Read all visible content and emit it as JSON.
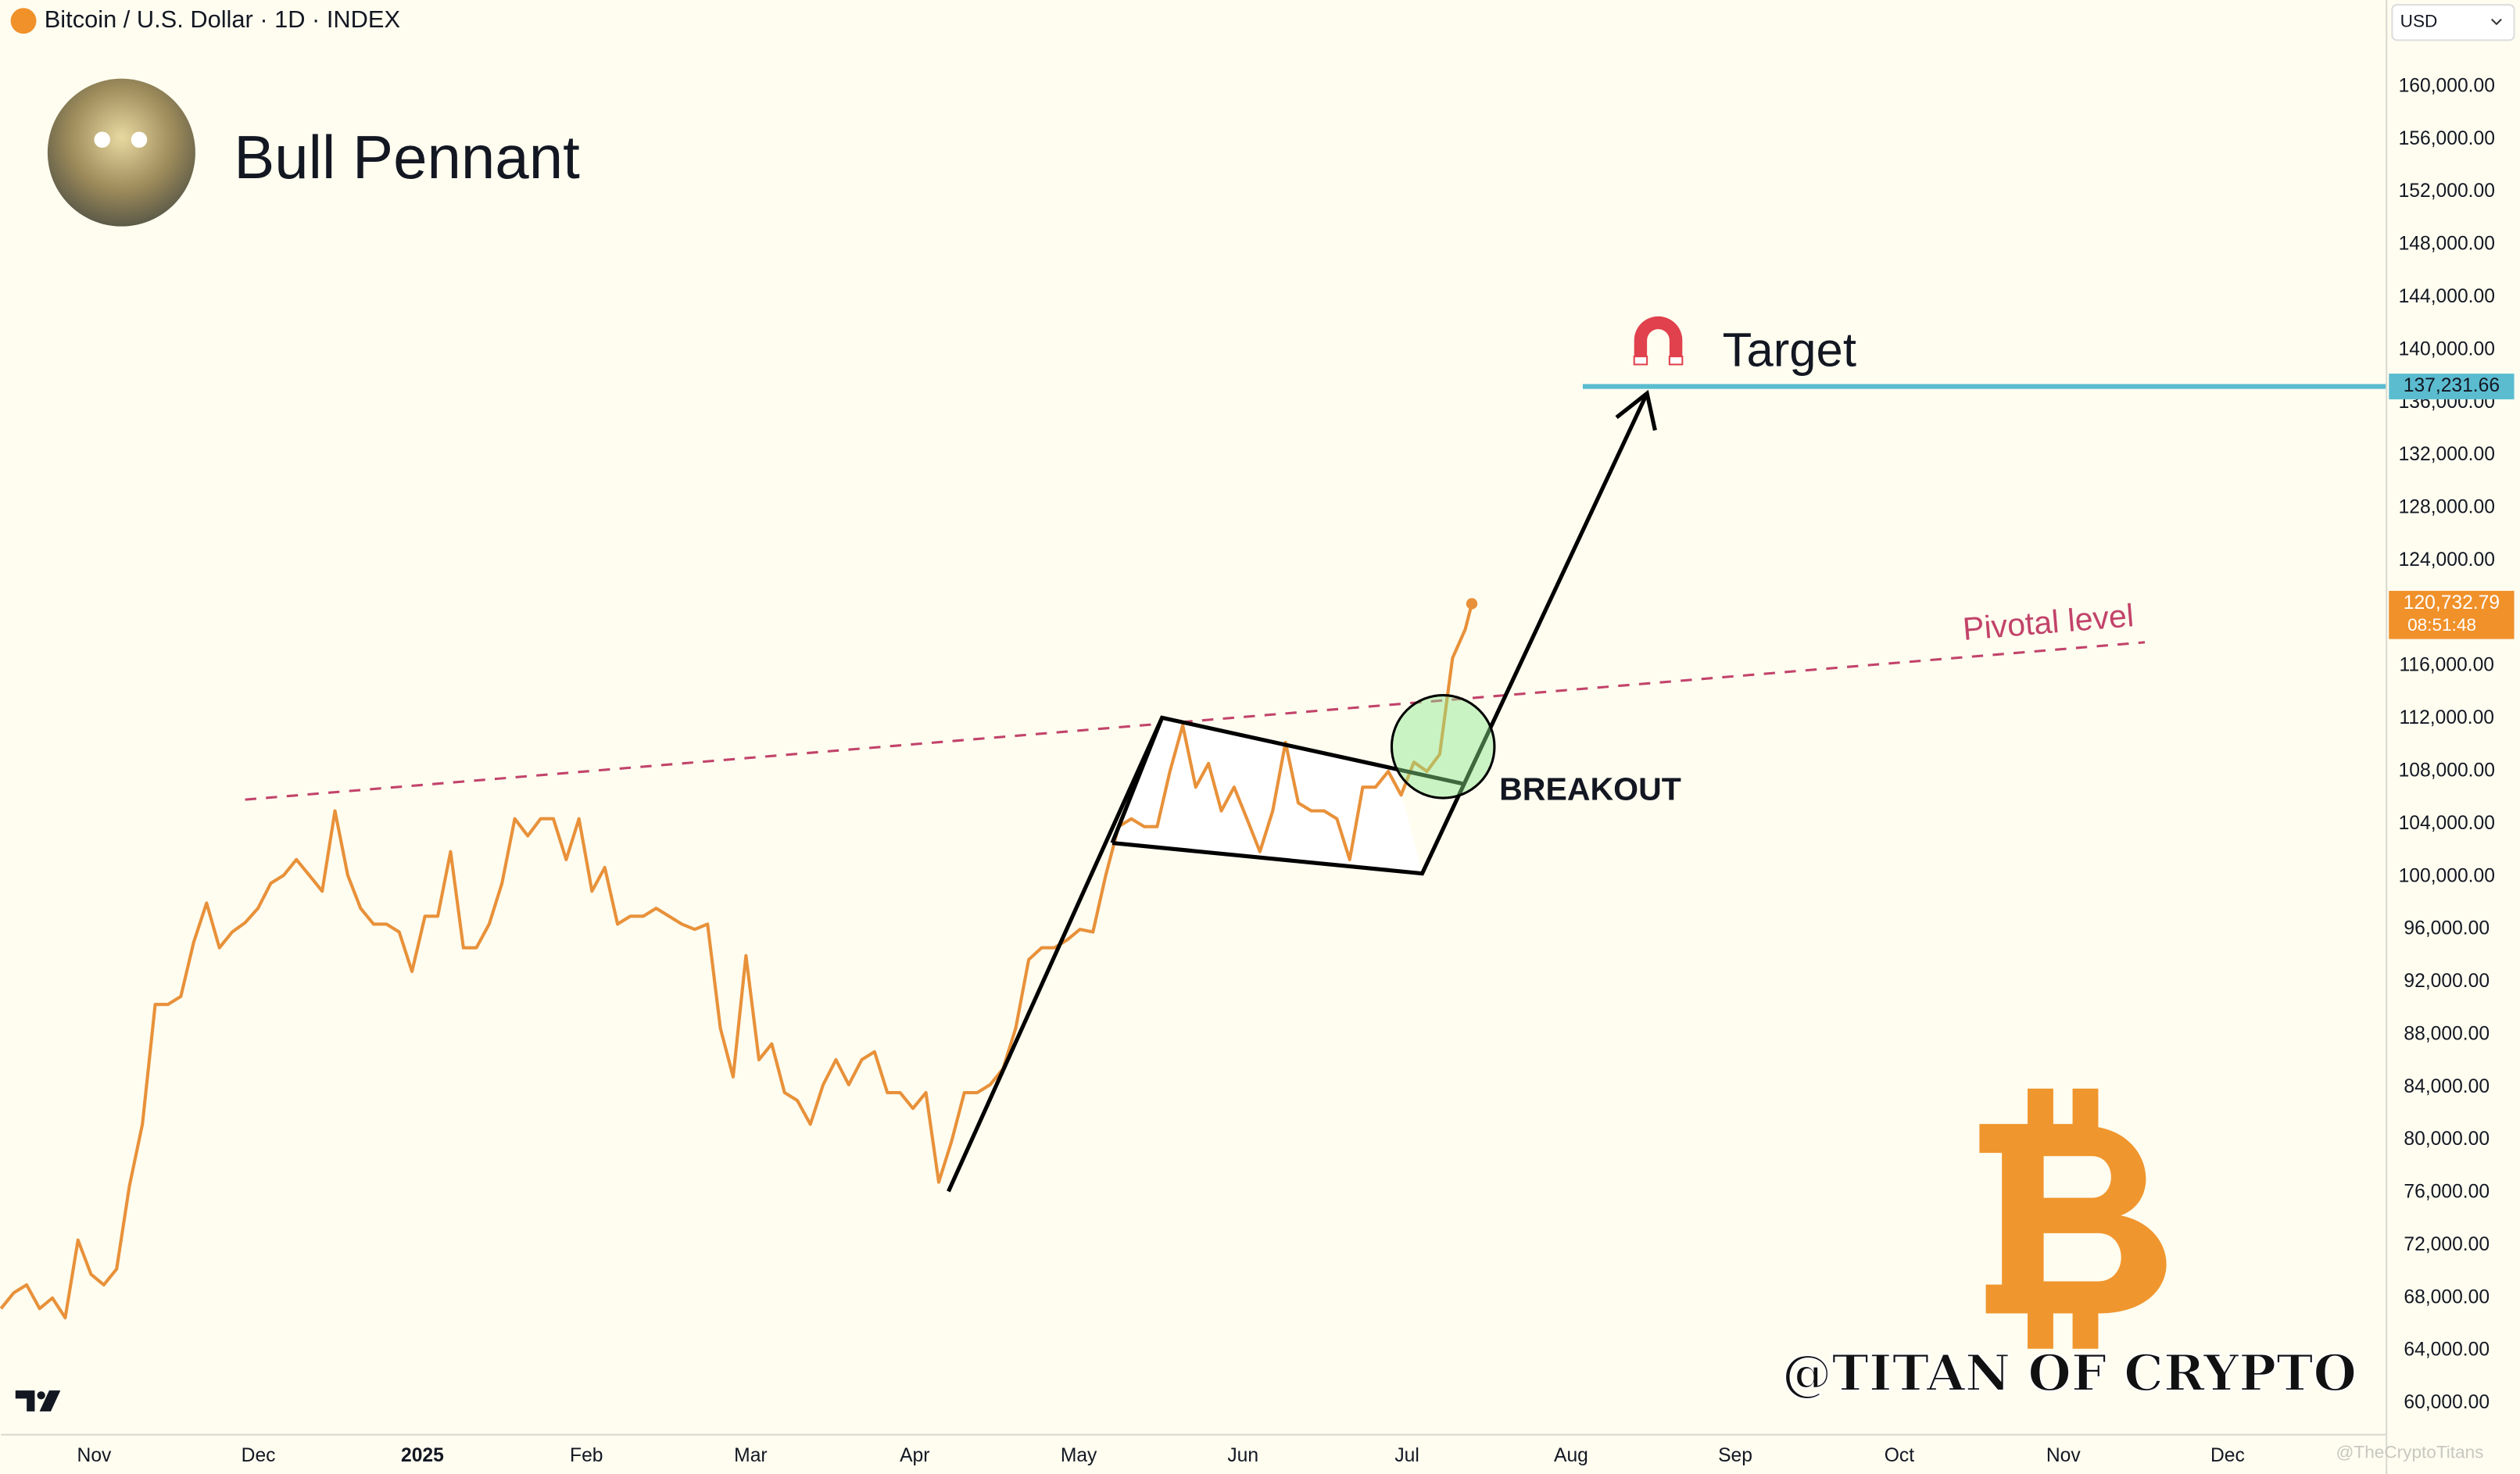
{
  "chart_data": {
    "type": "line",
    "title": "Bull Pennant",
    "x": [
      2024.786,
      2024.7925,
      2024.799,
      2024.8056,
      2024.8121,
      2024.8186,
      2024.8251,
      2024.8317,
      2024.8382,
      2024.8447,
      2024.8512,
      2024.8578,
      2024.8643,
      2024.8708,
      2024.8773,
      2024.8838,
      2024.8904,
      2024.8969,
      2024.9034,
      2024.9099,
      2024.9165,
      2024.923,
      2024.9295,
      2024.936,
      2024.9426,
      2024.9491,
      2024.9556,
      2024.9621,
      2024.9686,
      2024.9752,
      2024.9817,
      2024.9882,
      2024.9947,
      2025.0013,
      2025.0078,
      2025.0143,
      2025.0208,
      2025.0274,
      2025.0339,
      2025.0404,
      2025.0469,
      2025.0535,
      2025.06,
      2025.0665,
      2025.073,
      2025.0795,
      2025.0861,
      2025.0926,
      2025.0991,
      2025.1056,
      2025.1122,
      2025.1187,
      2025.1252,
      2025.1317,
      2025.1383,
      2025.1448,
      2025.1513,
      2025.1578,
      2025.1643,
      2025.1709,
      2025.1774,
      2025.1839,
      2025.1904,
      2025.197,
      2025.2035,
      2025.21,
      2025.2165,
      2025.2231,
      2025.2296,
      2025.2361,
      2025.2426,
      2025.2491,
      2025.2557,
      2025.2622,
      2025.2687,
      2025.2752,
      2025.2818,
      2025.2883,
      2025.2948,
      2025.3013,
      2025.3079,
      2025.3144,
      2025.3209,
      2025.3274,
      2025.3339,
      2025.3405,
      2025.347,
      2025.3535,
      2025.36,
      2025.3666,
      2025.3731,
      2025.3796,
      2025.3861,
      2025.3927,
      2025.3992,
      2025.4057,
      2025.4122,
      2025.4187,
      2025.4253,
      2025.4318,
      2025.4383,
      2025.4448,
      2025.4514,
      2025.4579,
      2025.4644,
      2025.4709,
      2025.4775,
      2025.484,
      2025.4905,
      2025.497,
      2025.5035,
      2025.5101,
      2025.5166,
      2025.5231,
      2025.5296,
      2025.5329
    ],
    "series": [
      {
        "name": "Bitcoin / U.S. Dollar · 1D · INDEX",
        "color": "#e8913a",
        "values": [
          67200,
          68400,
          69000,
          67200,
          68000,
          66500,
          72400,
          69800,
          69000,
          70200,
          76500,
          81200,
          90300,
          90300,
          90900,
          95000,
          98000,
          94600,
          95800,
          96500,
          97600,
          99500,
          100100,
          101300,
          100100,
          98900,
          105000,
          100100,
          97600,
          96400,
          96400,
          95800,
          92800,
          97000,
          97000,
          101900,
          94600,
          94600,
          96400,
          99500,
          104400,
          103100,
          104400,
          104400,
          101300,
          104400,
          98900,
          100700,
          96400,
          97000,
          97000,
          97600,
          97000,
          96400,
          96000,
          96400,
          88500,
          84800,
          94000,
          86100,
          87300,
          83600,
          83000,
          81200,
          84200,
          86100,
          84200,
          86100,
          86700,
          83600,
          83600,
          82400,
          83600,
          76800,
          79900,
          83600,
          83600,
          84200,
          85400,
          88500,
          93700,
          94600,
          94600,
          95200,
          96000,
          95800,
          100100,
          103800,
          104400,
          103800,
          103800,
          108000,
          111500,
          106800,
          108600,
          105000,
          106800,
          104400,
          101900,
          105000,
          110200,
          105600,
          105000,
          105000,
          104400,
          101300,
          106800,
          106800,
          108000,
          106200,
          108700,
          108000,
          109300,
          116600,
          118800,
          120732.79
        ]
      }
    ],
    "xlim": [
      2024.786,
      2025.997
    ],
    "xticks": [
      {
        "value": 2024.8333,
        "label": "Nov"
      },
      {
        "value": 2024.9167,
        "label": "Dec"
      },
      2025,
      {
        "value": 2025.0833,
        "label": "Feb"
      },
      {
        "value": 2025.1667,
        "label": "Mar"
      },
      {
        "value": 2025.25,
        "label": "Apr"
      },
      {
        "value": 2025.3333,
        "label": "May"
      },
      {
        "value": 2025.4167,
        "label": "Jun"
      },
      {
        "value": 2025.5,
        "label": "Jul"
      },
      {
        "value": 2025.5833,
        "label": "Aug"
      },
      {
        "value": 2025.6667,
        "label": "Sep"
      },
      {
        "value": 2025.75,
        "label": "Oct"
      },
      {
        "value": 2025.8333,
        "label": "Nov"
      },
      {
        "value": 2025.9167,
        "label": "Dec"
      }
    ],
    "ylim": [
      57683,
      166585
    ],
    "yticks": [
      {
        "value": 60000,
        "label": "60,000.00"
      },
      {
        "value": 64000,
        "label": "64,000.00"
      },
      {
        "value": 68000,
        "label": "68,000.00"
      },
      {
        "value": 72000,
        "label": "72,000.00"
      },
      {
        "value": 76000,
        "label": "76,000.00"
      },
      {
        "value": 80000,
        "label": "80,000.00"
      },
      {
        "value": 84000,
        "label": "84,000.00"
      },
      {
        "value": 88000,
        "label": "88,000.00"
      },
      {
        "value": 92000,
        "label": "92,000.00"
      },
      {
        "value": 96000,
        "label": "96,000.00"
      },
      {
        "value": 100000,
        "label": "100,000.00"
      },
      {
        "value": 104000,
        "label": "104,000.00"
      },
      {
        "value": 108000,
        "label": "108,000.00"
      },
      {
        "value": 112000,
        "label": "112,000.00"
      },
      {
        "value": 116000,
        "label": "116,000.00"
      },
      {
        "value": 120000,
        "label": "120,000.00"
      },
      {
        "value": 124000,
        "label": "124,000.00"
      },
      {
        "value": 128000,
        "label": "128,000.00"
      },
      {
        "value": 132000,
        "label": "132,000.00"
      },
      {
        "value": 136000,
        "label": "136,000.00"
      },
      {
        "value": 140000,
        "label": "140,000.00"
      },
      {
        "value": 144000,
        "label": "144,000.00"
      },
      {
        "value": 148000,
        "label": "148,000.00"
      },
      {
        "value": 152000,
        "label": "152,000.00"
      },
      {
        "value": 156000,
        "label": "156,000.00"
      },
      {
        "value": 160000,
        "label": "160,000.00"
      }
    ],
    "grid": false,
    "current_price": {
      "value": 120732.79,
      "label": "120,732.79",
      "countdown": "08:51:48",
      "color": "#f0912a"
    },
    "target": {
      "value": 137231.66,
      "label": "137,231.66",
      "text": "Target",
      "color": "#5bbcd0"
    },
    "annotations": {
      "pivotal": "Pivotal level",
      "breakout": "BREAKOUT",
      "handle": "@TITAN OF CRYPTO",
      "watermark": "@TheCryptoTitans"
    },
    "currency": "USD"
  }
}
